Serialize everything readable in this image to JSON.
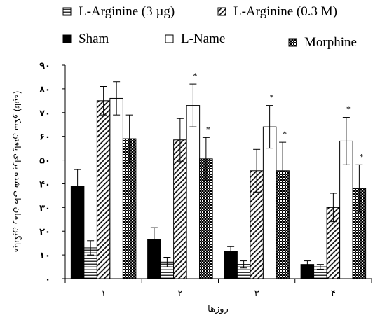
{
  "chart_data": {
    "type": "bar",
    "categories": [
      "۱",
      "۲",
      "۳",
      "۴"
    ],
    "xlabel": "روزها",
    "ylabel": "میانگین زمان طی شده برای یافتن سکو (ثانیه)",
    "ylim": [
      0,
      90
    ],
    "yticks": [
      {
        "value": 0,
        "label": "۰"
      },
      {
        "value": 10,
        "label": "۱۰"
      },
      {
        "value": 20,
        "label": "۲۰"
      },
      {
        "value": 30,
        "label": "۳۰"
      },
      {
        "value": 40,
        "label": "۴۰"
      },
      {
        "value": 50,
        "label": "۵۰"
      },
      {
        "value": 60,
        "label": "۶۰"
      },
      {
        "value": 70,
        "label": "۷۰"
      },
      {
        "value": 80,
        "label": "۸۰"
      },
      {
        "value": 90,
        "label": "۹۰"
      }
    ],
    "grid": false,
    "legend_position": "top",
    "series": [
      {
        "name": "Sham",
        "pattern": "solid-black",
        "values": [
          39,
          16.5,
          11.5,
          6
        ],
        "errors": [
          7,
          5,
          2,
          1.5
        ],
        "significant": [
          false,
          false,
          false,
          false
        ]
      },
      {
        "name": "L-Arginine (3 µg)",
        "pattern": "horizontal-lines",
        "values": [
          13,
          7,
          6,
          5
        ],
        "errors": [
          3,
          2,
          1.5,
          1
        ],
        "significant": [
          false,
          false,
          false,
          false
        ]
      },
      {
        "name": "L-Arginine (0.3 M)",
        "pattern": "diagonal-lines",
        "values": [
          75,
          58.5,
          45.5,
          30
        ],
        "errors": [
          6,
          9,
          9,
          6
        ],
        "significant": [
          false,
          false,
          false,
          false
        ]
      },
      {
        "name": "L-Name",
        "pattern": "white",
        "values": [
          76,
          73,
          64,
          58
        ],
        "errors": [
          7,
          9,
          9,
          10
        ],
        "significant": [
          false,
          true,
          true,
          true
        ]
      },
      {
        "name": "Morphine",
        "pattern": "cross-hatch",
        "values": [
          59,
          50.5,
          45.5,
          38
        ],
        "errors": [
          10,
          9,
          12,
          10
        ],
        "significant": [
          false,
          true,
          true,
          true
        ]
      }
    ],
    "significance_marker": "*",
    "legend_rows": [
      [
        "L-Arginine (3 µg)",
        "L-Arginine (0.3 M)"
      ],
      [
        "Sham",
        "L-Name",
        "Morphine"
      ]
    ]
  }
}
